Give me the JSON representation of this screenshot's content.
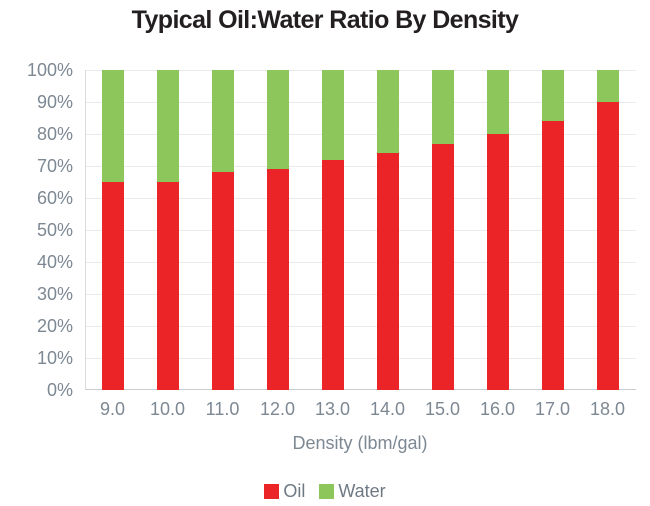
{
  "title": "Typical Oil:Water Ratio By Density",
  "chart_data": {
    "type": "bar",
    "stacked": true,
    "title": "Typical Oil:Water Ratio By Density",
    "categories": [
      "9.0",
      "10.0",
      "11.0",
      "12.0",
      "13.0",
      "14.0",
      "15.0",
      "16.0",
      "17.0",
      "18.0"
    ],
    "series": [
      {
        "name": "Oil",
        "color": "#EB2428",
        "values": [
          65,
          65,
          68,
          69,
          72,
          74,
          77,
          80,
          84,
          90
        ]
      },
      {
        "name": "Water",
        "color": "#8DC65A",
        "values": [
          35,
          35,
          32,
          31,
          28,
          26,
          23,
          20,
          16,
          10
        ]
      }
    ],
    "xlabel": "Density (lbm/gal)",
    "ylabel": "",
    "ylim": [
      0,
      100
    ],
    "yticks": [
      "0%",
      "10%",
      "20%",
      "30%",
      "40%",
      "50%",
      "60%",
      "70%",
      "80%",
      "90%",
      "100%"
    ],
    "grid": true,
    "legend_position": "bottom"
  },
  "colors": {
    "oil": "#EB2428",
    "water": "#8DC65A",
    "title_text": "#231F20",
    "tick_text": "#7D8893",
    "legend_text": "#6E7984",
    "gridline": "#E8EAEC",
    "axis_line": "#C8CDD2"
  }
}
